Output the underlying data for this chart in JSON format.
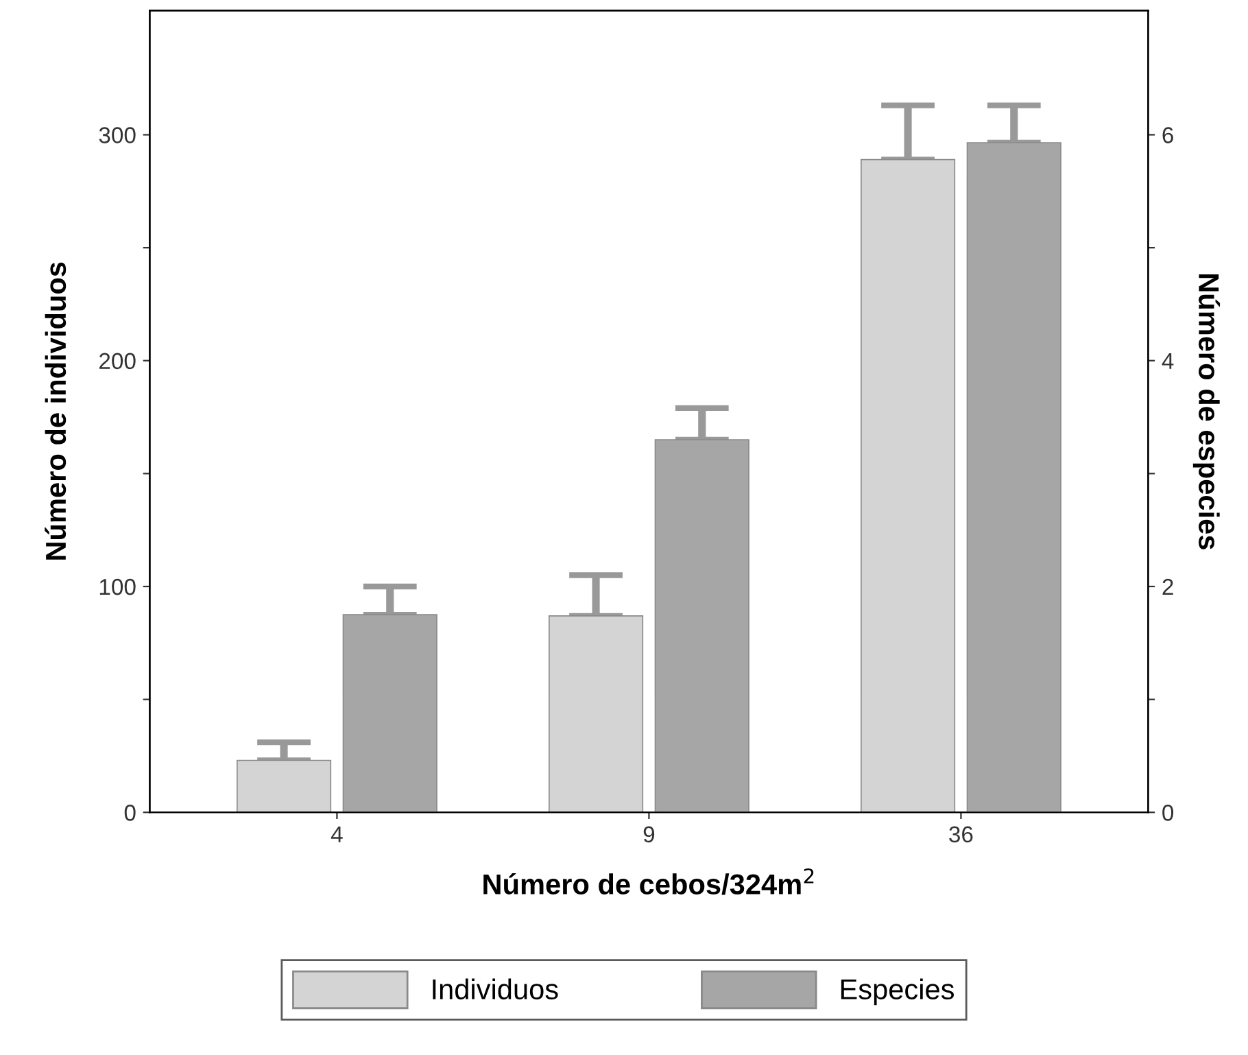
{
  "chart_data": {
    "type": "bar",
    "categories": [
      "4",
      "9",
      "36"
    ],
    "xlabel": "Número de cebos/324m$^{2}$",
    "ylabel": "Número de individuos",
    "y2label": "Número de especies",
    "series": [
      {
        "name": "Individuos",
        "color": "#d4d4d4",
        "values": [
          23,
          87,
          289
        ],
        "errors": [
          [
            23,
            31
          ],
          [
            87,
            105
          ],
          [
            289,
            313
          ]
        ]
      },
      {
        "name": "Especies",
        "color": "#a6a6a6",
        "axis": "y2",
        "values": [
          1.75,
          3.3,
          5.93
        ],
        "errors": [
          [
            1.75,
            2.0
          ],
          [
            3.3,
            3.58
          ],
          [
            5.93,
            6.26
          ]
        ]
      }
    ],
    "ylim": [
      0,
      355
    ],
    "yticks": [
      0,
      {
        "value": 50,
        "label": null
      },
      100,
      {
        "value": 150,
        "label": null
      },
      200,
      {
        "value": 250,
        "label": null
      },
      300
    ],
    "y2lim": [
      0,
      7.1
    ],
    "y2ticks": [
      0,
      {
        "value": 1,
        "label": null
      },
      2,
      {
        "value": 3,
        "label": null
      },
      4,
      {
        "value": 5,
        "label": null
      },
      6
    ],
    "legend": "bottom",
    "grid": false
  }
}
